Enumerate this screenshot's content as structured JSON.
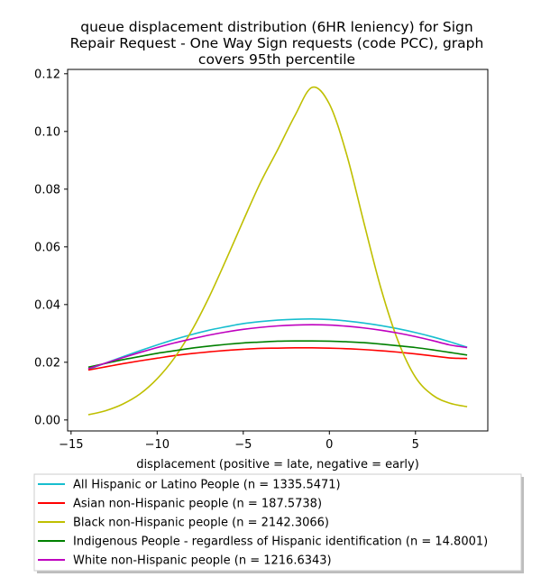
{
  "chart_data": {
    "type": "line",
    "title_lines": [
      "queue displacement distribution (6HR leniency) for Sign",
      "Repair Request - One Way Sign  requests (code PCC), graph",
      "covers 95th percentile"
    ],
    "xlabel": "displacement (positive = late, negative = early)",
    "ylabel": "",
    "xlim": [
      -15.2,
      9.2
    ],
    "ylim": [
      -0.0038,
      0.1215
    ],
    "xticks": [
      -15,
      -10,
      -5,
      0,
      5
    ],
    "xtick_labels": [
      "−15",
      "−10",
      "−5",
      "0",
      "5"
    ],
    "yticks": [
      0.0,
      0.02,
      0.04,
      0.06,
      0.08,
      0.1,
      0.12
    ],
    "ytick_labels": [
      "0.00",
      "0.02",
      "0.04",
      "0.06",
      "0.08",
      "0.10",
      "0.12"
    ],
    "grid": false,
    "legend_position": "below-plot",
    "x": [
      -14,
      -13,
      -12,
      -11,
      -10,
      -9,
      -8,
      -7,
      -6,
      -5,
      -4,
      -3,
      -2,
      -1,
      0,
      1,
      2,
      3,
      4,
      5,
      6,
      7,
      8
    ],
    "series": [
      {
        "name": "All Hispanic or Latino People (n = 1335.5471)",
        "color": "#17becf",
        "values": [
          0.0175,
          0.0197,
          0.0219,
          0.024,
          0.026,
          0.0279,
          0.0296,
          0.0311,
          0.0323,
          0.0334,
          0.0341,
          0.0346,
          0.0349,
          0.035,
          0.0348,
          0.0343,
          0.0336,
          0.0327,
          0.0316,
          0.0303,
          0.0288,
          0.0271,
          0.0252
        ]
      },
      {
        "name": "Asian non-Hispanic people (n = 187.5738)",
        "color": "#ff0000",
        "values": [
          0.0173,
          0.0184,
          0.0195,
          0.0205,
          0.0214,
          0.0223,
          0.023,
          0.0236,
          0.0241,
          0.0245,
          0.0248,
          0.0249,
          0.025,
          0.025,
          0.0249,
          0.0247,
          0.0244,
          0.024,
          0.0235,
          0.0229,
          0.0222,
          0.0215,
          0.0213
        ]
      },
      {
        "name": "Black non-Hispanic people (n = 2142.3066)",
        "color": "#bfbf00",
        "values": [
          0.0018,
          0.0032,
          0.0055,
          0.009,
          0.0143,
          0.0215,
          0.0309,
          0.0424,
          0.0555,
          0.0691,
          0.0823,
          0.0937,
          0.1055,
          0.1153,
          0.1095,
          0.0921,
          0.0685,
          0.0455,
          0.0272,
          0.0148,
          0.0086,
          0.0058,
          0.0046
        ]
      },
      {
        "name": "Indigenous People - regardless of Hispanic identification (n = 14.8001)",
        "color": "#008000",
        "values": [
          0.0183,
          0.0196,
          0.0209,
          0.022,
          0.0231,
          0.024,
          0.0249,
          0.0256,
          0.0262,
          0.0267,
          0.027,
          0.0273,
          0.0274,
          0.0274,
          0.0273,
          0.0271,
          0.0268,
          0.0263,
          0.0257,
          0.0251,
          0.0243,
          0.0234,
          0.0225
        ]
      },
      {
        "name": "White non-Hispanic people (n = 1216.6343)",
        "color": "#bf00bf",
        "values": [
          0.0178,
          0.0197,
          0.0216,
          0.0234,
          0.0251,
          0.0267,
          0.0281,
          0.0294,
          0.0305,
          0.0314,
          0.0321,
          0.0326,
          0.0329,
          0.033,
          0.0329,
          0.0325,
          0.0319,
          0.0311,
          0.0301,
          0.0289,
          0.0275,
          0.026,
          0.0251
        ]
      }
    ]
  }
}
